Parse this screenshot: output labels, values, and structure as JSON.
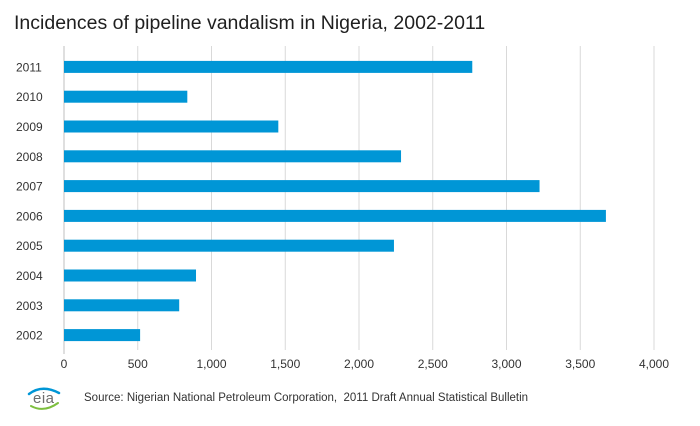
{
  "chart_data": {
    "type": "bar",
    "orientation": "horizontal",
    "title": "Incidences of pipeline vandalism in Nigeria, 2002-2011",
    "categories": [
      "2011",
      "2010",
      "2009",
      "2008",
      "2007",
      "2006",
      "2005",
      "2004",
      "2003",
      "2002"
    ],
    "values": [
      2768,
      836,
      1453,
      2285,
      3224,
      3674,
      2237,
      895,
      781,
      516
    ],
    "xlim": [
      0,
      4000
    ],
    "xticks": [
      0,
      500,
      1000,
      1500,
      2000,
      2500,
      3000,
      3500,
      4000
    ],
    "xtick_labels": [
      "0",
      "500",
      "1,000",
      "1,500",
      "2,000",
      "2,500",
      "3,000",
      "3,500",
      "4,000"
    ],
    "grid": "vertical",
    "bar_color": "#0096d6",
    "grid_color": "#d9d9d9"
  },
  "footer": {
    "logo_text": "eia",
    "source": "Source: Nigerian National Petroleum Corporation,  2011 Draft Annual Statistical Bulletin"
  }
}
